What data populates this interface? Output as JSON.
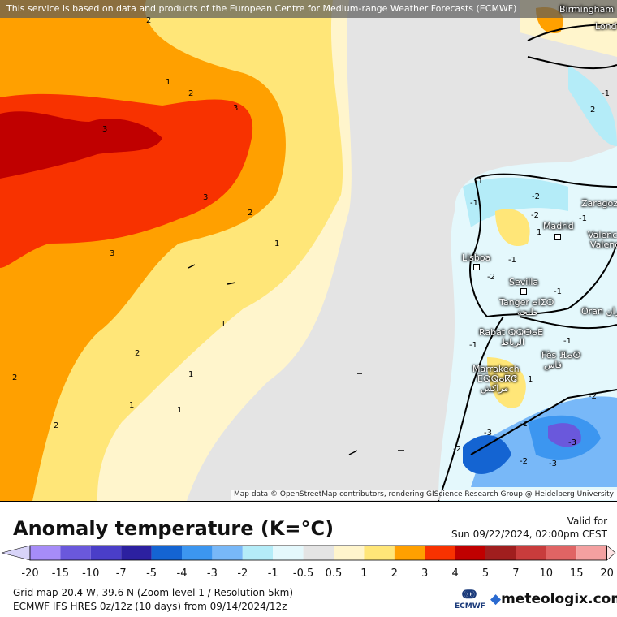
{
  "map": {
    "attribution_top": "This service is based on data and products of the European Centre for Medium-range Weather Forecasts (ECMWF)",
    "attribution_bottom": "Map data © OpenStreetMap contributors, rendering GIScience Research Group @ Heidelberg University",
    "cities": [
      {
        "name": "Birmingham"
      },
      {
        "name": "Lond"
      },
      {
        "name": "Zaragoza"
      },
      {
        "name": "Madrid"
      },
      {
        "name": "Valenc"
      },
      {
        "name": "Valenc"
      },
      {
        "name": "Lisboa"
      },
      {
        "name": "Sevilla"
      },
      {
        "name": "Tanger ⴰⵏⵉⵔ"
      },
      {
        "name": "طنجة"
      },
      {
        "name": "Oran وهران"
      },
      {
        "name": "Rabat ⵕⵕⴱⴰⵟ"
      },
      {
        "name": "الرباط"
      },
      {
        "name": "Fès ⴼⴰⵙ"
      },
      {
        "name": "فاس"
      },
      {
        "name": "Marrakech"
      },
      {
        "name": "ⵎⵕⵕⴰⴽⵛ"
      },
      {
        "name": "مراكش"
      }
    ],
    "contour_labels": [
      "2",
      "1",
      "2",
      "3",
      "3",
      "3",
      "2",
      "3",
      "1",
      "2",
      "1",
      "2",
      "2",
      "1",
      "1",
      "1",
      "2",
      "-1",
      "-2",
      "-2",
      "-1",
      "1",
      "-1",
      "-1",
      "-2",
      "-1",
      "-1",
      "1",
      "-1",
      "-2",
      "-3",
      "-3",
      "-2",
      "-3",
      "-2",
      "-1",
      "-1"
    ]
  },
  "legend": {
    "title": "Anomaly temperature (K=°C)",
    "valid_label": "Valid for",
    "valid_time": "Sun 09/22/2024, 02:00pm CEST",
    "ticks": [
      "-20",
      "-15",
      "-10",
      "-7",
      "-5",
      "-4",
      "-3",
      "-2",
      "-1",
      "-0.5",
      "0.5",
      "1",
      "2",
      "3",
      "4",
      "5",
      "7",
      "10",
      "15",
      "20"
    ],
    "colors": [
      "#a68cf8",
      "#6a58dc",
      "#4a3ec8",
      "#2c20a0",
      "#1464d2",
      "#3c96f0",
      "#78b8f8",
      "#b4ecf8",
      "#e4f8fc",
      "#e4e4e4",
      "#fff5cc",
      "#ffe678",
      "#ffa000",
      "#f83200",
      "#c00000",
      "#a01e1e",
      "#c83c3c",
      "#e06464",
      "#f4a0a0"
    ],
    "under_color": "#d8d4f8",
    "over_color": "#fde4e4"
  },
  "info": {
    "grid": "Grid map 20.4 W, 39.6 N (Zoom level 1 / Resolution 5km)",
    "model": "ECMWF IFS HRES 0z/12z (10 days) from  09/14/2024/12z"
  },
  "logos": {
    "ecmwf": "ECMWF",
    "meteologix": "meteologix.com"
  }
}
